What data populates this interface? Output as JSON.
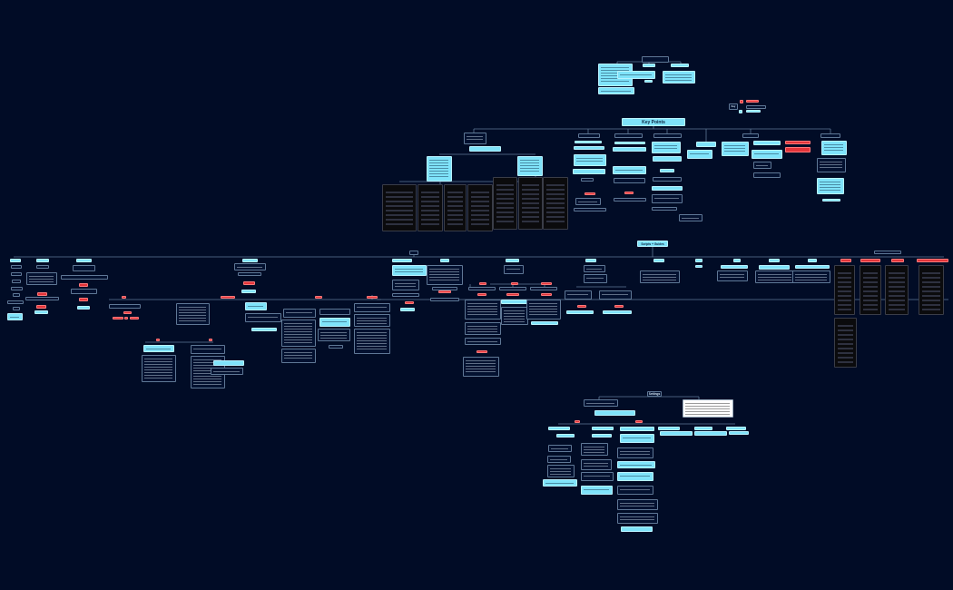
{
  "diagram": {
    "key_points": "Key Points",
    "scripts_guides": "Scripts + Guides",
    "settings": "Settings",
    "key_label": "Key"
  },
  "colors": {
    "background": "#010c26",
    "node_dark": "#031130",
    "node_cyan": "#7fe3fa",
    "node_red": "#e3343a",
    "connector": "#5f7896"
  }
}
